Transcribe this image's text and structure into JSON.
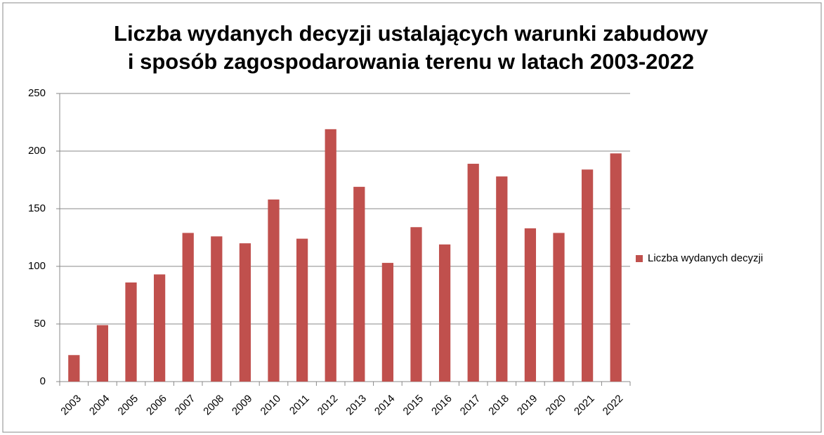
{
  "chart_data": {
    "type": "bar",
    "title": [
      "Liczba wydanych decyzji ustalających warunki zabudowy",
      "i sposób zagospodarowania terenu w latach 2003-2022"
    ],
    "categories": [
      "2003",
      "2004",
      "2005",
      "2006",
      "2007",
      "2008",
      "2009",
      "2010",
      "2011",
      "2012",
      "2013",
      "2014",
      "2015",
      "2016",
      "2017",
      "2018",
      "2019",
      "2020",
      "2021",
      "2022"
    ],
    "series": [
      {
        "name": "Liczba wydanych decyzji",
        "color": "#c0504d",
        "values": [
          23,
          49,
          86,
          93,
          129,
          126,
          120,
          158,
          124,
          219,
          169,
          103,
          134,
          119,
          189,
          178,
          133,
          129,
          184,
          198
        ]
      }
    ],
    "ylim": [
      0,
      250
    ],
    "yticks": [
      0,
      50,
      100,
      150,
      200,
      250
    ],
    "grid": true,
    "legend": "right"
  }
}
